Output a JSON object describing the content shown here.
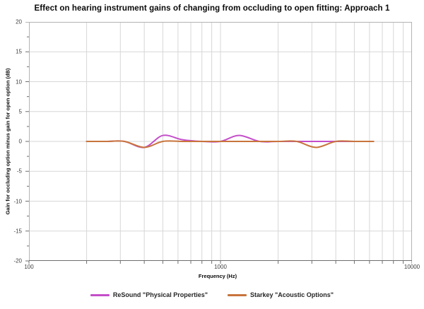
{
  "title": "Effect on hearing instrument gains of changing from occluding to open fitting: Approach 1",
  "chart_data": {
    "type": "line",
    "title": "Effect on hearing instrument gains of changing from occluding to open fitting: Approach 1",
    "x_axis": {
      "label": "Frequency (Hz)",
      "scale": "log",
      "min": 100,
      "max": 10000,
      "tick_values": [
        100,
        1000,
        10000
      ],
      "tick_labels": [
        "100",
        "1000",
        "10000"
      ]
    },
    "y_axis": {
      "label": "Gain for occluding option minus gain for open option (dB)",
      "min": -20,
      "max": 20,
      "major_tick_step": 5,
      "minor_tick_step": 2.5,
      "tick_values": [
        20,
        15,
        10,
        5,
        0,
        -5,
        -10,
        -15,
        -20
      ],
      "tick_labels": [
        "20",
        "15",
        "10",
        "5",
        "0",
        "-5",
        "-10",
        "-15",
        "-20"
      ]
    },
    "grid": "on",
    "grid_color": "#d7d7d7",
    "border_color": "#b3b3b3",
    "axis_color": "#6e6e6e",
    "background_color": "#ffffff",
    "legend_position": "bottom",
    "x": [
      200,
      250,
      315,
      400,
      500,
      630,
      800,
      1000,
      1250,
      1600,
      2000,
      2500,
      3150,
      4000,
      5000,
      6300
    ],
    "series": [
      {
        "name": "ReSound \"Physical Properties\"",
        "color": "#c44ec9",
        "values": [
          0,
          0,
          0,
          -1,
          1,
          0.3,
          0,
          0,
          1,
          0,
          0,
          0,
          0,
          0,
          0,
          0
        ]
      },
      {
        "name": "Starkey \"Acoustic Options\"",
        "color": "#c8743c",
        "values": [
          0,
          0,
          0,
          -1,
          0,
          0,
          0,
          0,
          0,
          0,
          0,
          0,
          -1,
          0,
          0,
          0
        ]
      }
    ]
  }
}
